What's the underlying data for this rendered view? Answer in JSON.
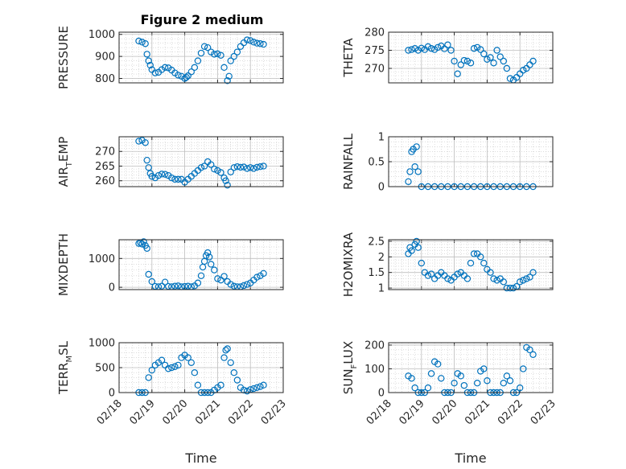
{
  "figure": {
    "title": "Figure 2 medium",
    "marker_color": "#0072BD"
  },
  "chart_data": [
    {
      "type": "scatter",
      "key": "pressure",
      "ylabel": "PRESSURE",
      "ylabel_main": "PRESSURE",
      "ylabel_sub": "",
      "ylabel_tail": "",
      "ylim": [
        780,
        1010
      ],
      "yticks": [
        800,
        900,
        1000
      ],
      "x": [
        18.6,
        18.7,
        18.8,
        18.85,
        18.9,
        18.95,
        19.0,
        19.1,
        19.2,
        19.3,
        19.4,
        19.5,
        19.6,
        19.7,
        19.8,
        19.9,
        20.0,
        20.05,
        20.1,
        20.2,
        20.3,
        20.4,
        20.5,
        20.6,
        20.7,
        20.8,
        20.9,
        21.0,
        21.1,
        21.2,
        21.3,
        21.35,
        21.4,
        21.5,
        21.6,
        21.7,
        21.8,
        21.9,
        22.0,
        22.1,
        22.2,
        22.3,
        22.4
      ],
      "y": [
        970,
        965,
        958,
        910,
        880,
        860,
        840,
        825,
        828,
        840,
        850,
        848,
        838,
        825,
        815,
        810,
        800,
        805,
        812,
        830,
        850,
        880,
        915,
        945,
        940,
        920,
        910,
        912,
        905,
        850,
        790,
        810,
        880,
        900,
        920,
        945,
        962,
        975,
        972,
        965,
        960,
        958,
        955
      ]
    },
    {
      "type": "scatter",
      "key": "theta",
      "ylabel": "THETA",
      "ylabel_main": "THETA",
      "ylabel_sub": "",
      "ylabel_tail": "",
      "ylim": [
        266,
        280
      ],
      "yticks": [
        270,
        275,
        280
      ],
      "x": [
        18.6,
        18.7,
        18.8,
        18.9,
        19.0,
        19.1,
        19.2,
        19.3,
        19.4,
        19.5,
        19.6,
        19.7,
        19.8,
        19.9,
        20.0,
        20.1,
        20.2,
        20.3,
        20.4,
        20.5,
        20.6,
        20.7,
        20.8,
        20.9,
        21.0,
        21.1,
        21.2,
        21.3,
        21.4,
        21.5,
        21.6,
        21.7,
        21.8,
        21.9,
        22.0,
        22.1,
        22.2,
        22.3,
        22.4
      ],
      "y": [
        275,
        275.2,
        275.5,
        275,
        275.6,
        275.2,
        276,
        275.5,
        275.2,
        275.8,
        276.2,
        275.4,
        276.5,
        275,
        272,
        268.5,
        271,
        272.2,
        272,
        271.5,
        275.5,
        275.8,
        275.2,
        274,
        272.5,
        273,
        271.5,
        275,
        273.2,
        272,
        270,
        267.2,
        266.8,
        267.5,
        268.5,
        269.5,
        270,
        271,
        272
      ]
    },
    {
      "type": "scatter",
      "key": "air_temp",
      "ylabel": "AIRTEMP",
      "ylabel_main": "AIR",
      "ylabel_sub": "T",
      "ylabel_tail": "EMP",
      "ylim": [
        258,
        275
      ],
      "yticks": [
        260,
        265,
        270
      ],
      "x": [
        18.6,
        18.7,
        18.8,
        18.85,
        18.9,
        18.95,
        19.0,
        19.1,
        19.2,
        19.3,
        19.4,
        19.5,
        19.6,
        19.7,
        19.8,
        19.9,
        20.0,
        20.1,
        20.2,
        20.3,
        20.4,
        20.5,
        20.6,
        20.7,
        20.8,
        20.9,
        21.0,
        21.1,
        21.2,
        21.25,
        21.3,
        21.4,
        21.5,
        21.6,
        21.7,
        21.8,
        21.9,
        22.0,
        22.1,
        22.2,
        22.3,
        22.4
      ],
      "y": [
        273.5,
        273.8,
        273,
        267,
        264.5,
        262.5,
        261.5,
        261,
        261.8,
        262.3,
        262.2,
        261.8,
        261,
        260.5,
        260.5,
        260.5,
        259.5,
        260.5,
        261.5,
        262.5,
        263.5,
        264.5,
        265,
        266.5,
        265.5,
        264,
        263.5,
        262.8,
        261,
        260,
        258.5,
        263,
        264.5,
        264.8,
        264.6,
        264.7,
        264.2,
        264.5,
        264.2,
        264.6,
        264.8,
        265
      ]
    },
    {
      "type": "scatter",
      "key": "rainfall",
      "ylabel": "RAINFALL",
      "ylabel_main": "RAINFALL",
      "ylabel_sub": "",
      "ylabel_tail": "",
      "ylim": [
        0,
        1
      ],
      "yticks": [
        0,
        0.5,
        1
      ],
      "x": [
        18.6,
        18.65,
        18.7,
        18.75,
        18.8,
        18.85,
        18.9,
        19.0,
        19.2,
        19.4,
        19.6,
        19.8,
        20.0,
        20.2,
        20.4,
        20.6,
        20.8,
        21.0,
        21.2,
        21.4,
        21.6,
        21.8,
        22.0,
        22.2,
        22.4
      ],
      "y": [
        0.1,
        0.3,
        0.7,
        0.75,
        0.4,
        0.8,
        0.3,
        0,
        0,
        0,
        0,
        0,
        0,
        0,
        0,
        0,
        0,
        0,
        0,
        0,
        0,
        0,
        0,
        0,
        0
      ]
    },
    {
      "type": "scatter",
      "key": "mixdepth",
      "ylabel": "MIXDEPTH",
      "ylabel_main": "MIXDEPTH",
      "ylabel_sub": "",
      "ylabel_tail": "",
      "ylim": [
        -80,
        1650
      ],
      "yticks": [
        0,
        1000
      ],
      "x": [
        18.6,
        18.65,
        18.7,
        18.75,
        18.8,
        18.85,
        18.9,
        19.0,
        19.1,
        19.2,
        19.3,
        19.4,
        19.5,
        19.6,
        19.7,
        19.8,
        19.9,
        20.0,
        20.1,
        20.2,
        20.3,
        20.4,
        20.5,
        20.55,
        20.6,
        20.65,
        20.7,
        20.75,
        20.8,
        20.9,
        21.0,
        21.1,
        21.2,
        21.3,
        21.4,
        21.5,
        21.6,
        21.7,
        21.8,
        21.9,
        22.0,
        22.1,
        22.2,
        22.3,
        22.4
      ],
      "y": [
        1520,
        1550,
        1500,
        1580,
        1450,
        1350,
        450,
        200,
        30,
        20,
        40,
        180,
        30,
        20,
        40,
        50,
        20,
        30,
        40,
        20,
        50,
        150,
        400,
        700,
        900,
        1100,
        1200,
        1050,
        800,
        600,
        300,
        250,
        380,
        200,
        100,
        40,
        20,
        20,
        60,
        100,
        150,
        250,
        350,
        400,
        480
      ]
    },
    {
      "type": "scatter",
      "key": "h2omixra",
      "ylabel": "H2OMIXRA",
      "ylabel_main": "H2OMIXRA",
      "ylabel_sub": "",
      "ylabel_tail": "",
      "ylim": [
        0.95,
        2.55
      ],
      "yticks": [
        1,
        1.5,
        2,
        2.5
      ],
      "x": [
        18.6,
        18.65,
        18.7,
        18.8,
        18.85,
        18.9,
        19.0,
        19.1,
        19.2,
        19.3,
        19.4,
        19.5,
        19.6,
        19.7,
        19.8,
        19.9,
        20.0,
        20.1,
        20.2,
        20.3,
        20.4,
        20.5,
        20.6,
        20.7,
        20.8,
        20.9,
        21.0,
        21.1,
        21.2,
        21.3,
        21.4,
        21.5,
        21.6,
        21.7,
        21.8,
        21.9,
        22.0,
        22.1,
        22.2,
        22.3,
        22.4
      ],
      "y": [
        2.1,
        2.3,
        2.2,
        2.4,
        2.5,
        2.3,
        1.8,
        1.5,
        1.4,
        1.45,
        1.3,
        1.4,
        1.5,
        1.4,
        1.3,
        1.25,
        1.35,
        1.45,
        1.5,
        1.4,
        1.3,
        1.8,
        2.1,
        2.1,
        2.0,
        1.8,
        1.6,
        1.5,
        1.3,
        1.25,
        1.3,
        1.2,
        1.0,
        1.0,
        1.0,
        1.05,
        1.2,
        1.25,
        1.3,
        1.35,
        1.5
      ]
    },
    {
      "type": "scatter",
      "key": "terr_msl",
      "ylabel": "TERRMSL",
      "ylabel_main": "TERR",
      "ylabel_sub": "M",
      "ylabel_tail": "SL",
      "ylim": [
        0,
        1000
      ],
      "yticks": [
        0,
        500,
        1000
      ],
      "x": [
        18.6,
        18.7,
        18.8,
        18.9,
        19.0,
        19.1,
        19.2,
        19.3,
        19.4,
        19.5,
        19.6,
        19.7,
        19.8,
        19.9,
        20.0,
        20.1,
        20.2,
        20.3,
        20.4,
        20.5,
        20.6,
        20.7,
        20.8,
        20.9,
        21.0,
        21.1,
        21.2,
        21.25,
        21.3,
        21.4,
        21.5,
        21.6,
        21.7,
        21.8,
        21.9,
        22.0,
        22.1,
        22.2,
        22.3,
        22.4
      ],
      "y": [
        0,
        0,
        0,
        300,
        450,
        550,
        600,
        650,
        550,
        480,
        500,
        520,
        550,
        700,
        750,
        700,
        600,
        400,
        150,
        0,
        0,
        0,
        0,
        50,
        100,
        150,
        700,
        850,
        880,
        600,
        400,
        250,
        100,
        50,
        30,
        60,
        80,
        100,
        120,
        150
      ]
    },
    {
      "type": "scatter",
      "key": "sun_flux",
      "ylabel": "SUNFLUX",
      "ylabel_main": "SUN",
      "ylabel_sub": "F",
      "ylabel_tail": "LUX",
      "ylim": [
        0,
        210
      ],
      "yticks": [
        0,
        100,
        200
      ],
      "x": [
        18.6,
        18.7,
        18.8,
        18.9,
        19.0,
        19.1,
        19.2,
        19.3,
        19.4,
        19.5,
        19.6,
        19.7,
        19.8,
        19.9,
        20.0,
        20.1,
        20.2,
        20.3,
        20.4,
        20.5,
        20.6,
        20.7,
        20.8,
        20.9,
        21.0,
        21.1,
        21.2,
        21.3,
        21.4,
        21.5,
        21.6,
        21.7,
        21.8,
        21.9,
        22.0,
        22.1,
        22.2,
        22.3,
        22.4
      ],
      "y": [
        70,
        60,
        20,
        0,
        0,
        0,
        20,
        80,
        130,
        120,
        60,
        0,
        0,
        0,
        40,
        80,
        70,
        30,
        0,
        0,
        0,
        40,
        90,
        100,
        50,
        0,
        0,
        0,
        0,
        40,
        70,
        50,
        0,
        0,
        20,
        100,
        190,
        180,
        160
      ]
    }
  ],
  "x_axis": {
    "label": "Time",
    "xlim": [
      18,
      23
    ],
    "ticks": [
      18,
      19,
      20,
      21,
      22,
      23
    ],
    "ticklabels": [
      "02/18",
      "02/19",
      "02/20",
      "02/21",
      "02/22",
      "02/23"
    ]
  }
}
